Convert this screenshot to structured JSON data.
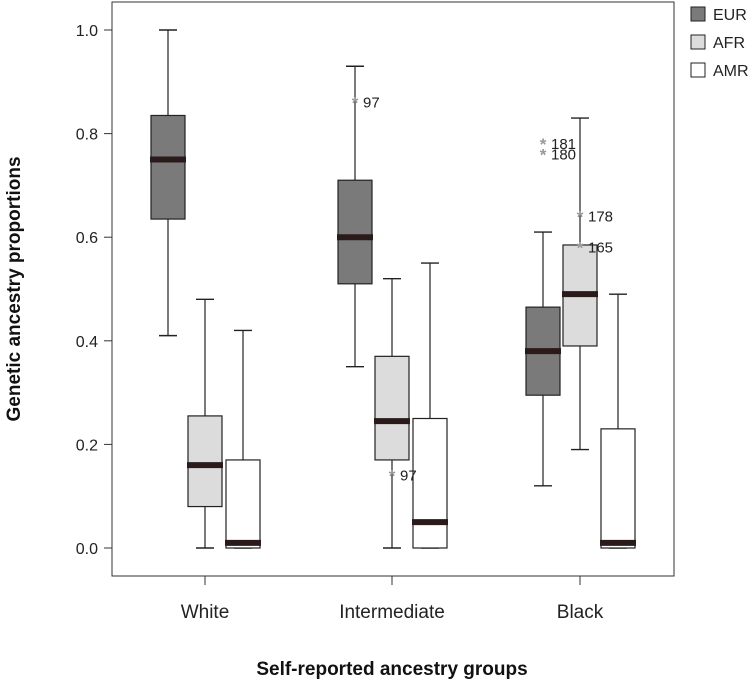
{
  "chart_data": {
    "type": "boxplot",
    "title": "",
    "xlabel": "Self-reported ancestry groups",
    "ylabel": "Genetic ancestry proportions",
    "ylim": [
      0,
      1.0
    ],
    "yticks": [
      0.0,
      0.2,
      0.4,
      0.6,
      0.8,
      1.0
    ],
    "ytick_labels": [
      "0.0",
      "0.2",
      "0.4",
      "0.6",
      "0.8",
      "1.0"
    ],
    "categories": [
      "White",
      "Intermediate",
      "Black"
    ],
    "legend": {
      "position": "top-right",
      "entries": [
        {
          "name": "EUR",
          "color": "#7a7a7a"
        },
        {
          "name": "AFR",
          "color": "#dcdcdc"
        },
        {
          "name": "AMR",
          "color": "#ffffff"
        }
      ]
    },
    "series": [
      {
        "name": "EUR",
        "color": "#7a7a7a",
        "boxes": [
          {
            "whisker_low": 0.41,
            "q1": 0.635,
            "median": 0.75,
            "q3": 0.835,
            "whisker_high": 1.0,
            "outliers": []
          },
          {
            "whisker_low": 0.35,
            "q1": 0.51,
            "median": 0.6,
            "q3": 0.71,
            "whisker_high": 0.93,
            "outliers": [
              {
                "value": 0.86,
                "label": "97"
              }
            ]
          },
          {
            "whisker_low": 0.12,
            "q1": 0.295,
            "median": 0.38,
            "q3": 0.465,
            "whisker_high": 0.61,
            "outliers": [
              {
                "value": 0.78,
                "label": "181"
              },
              {
                "value": 0.76,
                "label": "180"
              }
            ]
          }
        ]
      },
      {
        "name": "AFR",
        "color": "#dcdcdc",
        "boxes": [
          {
            "whisker_low": 0.0,
            "q1": 0.08,
            "median": 0.16,
            "q3": 0.255,
            "whisker_high": 0.48,
            "outliers": []
          },
          {
            "whisker_low": 0.0,
            "q1": 0.17,
            "median": 0.245,
            "q3": 0.37,
            "whisker_high": 0.52,
            "outliers": [
              {
                "value": 0.14,
                "label": "97"
              }
            ]
          },
          {
            "whisker_low": 0.19,
            "q1": 0.39,
            "median": 0.49,
            "q3": 0.585,
            "whisker_high": 0.83,
            "outliers": [
              {
                "value": 0.64,
                "label": "178"
              },
              {
                "value": 0.58,
                "label": "165"
              }
            ]
          }
        ]
      },
      {
        "name": "AMR",
        "color": "#ffffff",
        "boxes": [
          {
            "whisker_low": 0.0,
            "q1": 0.0,
            "median": 0.01,
            "q3": 0.17,
            "whisker_high": 0.42,
            "outliers": []
          },
          {
            "whisker_low": 0.0,
            "q1": 0.0,
            "median": 0.05,
            "q3": 0.25,
            "whisker_high": 0.55,
            "outliers": []
          },
          {
            "whisker_low": 0.0,
            "q1": 0.0,
            "median": 0.01,
            "q3": 0.23,
            "whisker_high": 0.49,
            "outliers": []
          }
        ]
      }
    ],
    "outlier_marker": "*"
  }
}
